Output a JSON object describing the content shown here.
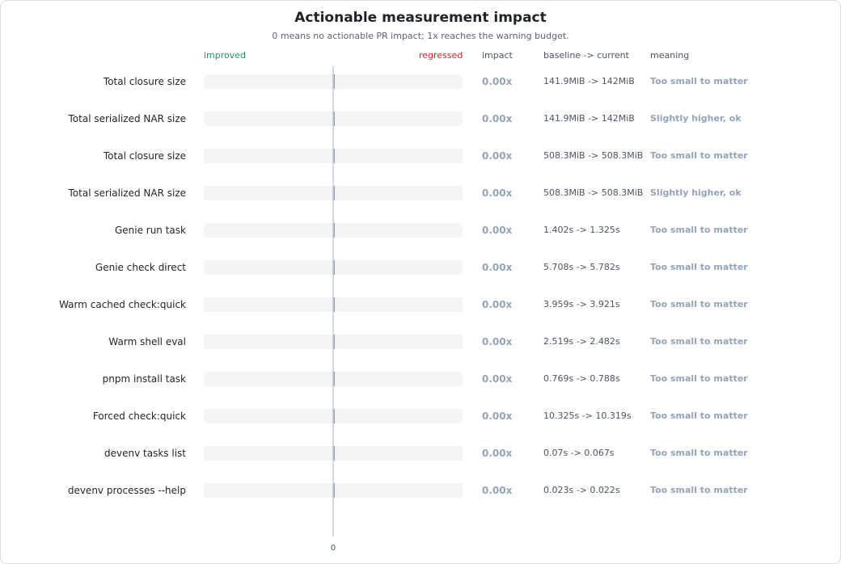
{
  "chart_data": {
    "type": "bar",
    "title": "Actionable measurement impact",
    "subtitle": "0 means no actionable PR impact; 1x reaches the warning budget.",
    "columns": {
      "improved": "improved",
      "regressed": "regressed",
      "impact": "impact",
      "baseline": "baseline -> current",
      "meaning": "meaning"
    },
    "x_tick": "0",
    "xlim": [
      -1,
      1
    ],
    "grid": false,
    "rows": [
      {
        "label": "Total closure size",
        "value": 0.0,
        "impact": "0.00x",
        "baseline": "141.9MiB -> 142MiB",
        "meaning": "Too small to matter"
      },
      {
        "label": "Total serialized NAR size",
        "value": 0.0,
        "impact": "0.00x",
        "baseline": "141.9MiB -> 142MiB",
        "meaning": "Slightly higher, ok"
      },
      {
        "label": "Total closure size",
        "value": 0.0,
        "impact": "0.00x",
        "baseline": "508.3MiB -> 508.3MiB",
        "meaning": "Too small to matter"
      },
      {
        "label": "Total serialized NAR size",
        "value": 0.0,
        "impact": "0.00x",
        "baseline": "508.3MiB -> 508.3MiB",
        "meaning": "Slightly higher, ok"
      },
      {
        "label": "Genie run task",
        "value": 0.0,
        "impact": "0.00x",
        "baseline": "1.402s -> 1.325s",
        "meaning": "Too small to matter"
      },
      {
        "label": "Genie check direct",
        "value": 0.0,
        "impact": "0.00x",
        "baseline": "5.708s -> 5.782s",
        "meaning": "Too small to matter"
      },
      {
        "label": "Warm cached check:quick",
        "value": 0.0,
        "impact": "0.00x",
        "baseline": "3.959s -> 3.921s",
        "meaning": "Too small to matter"
      },
      {
        "label": "Warm shell eval",
        "value": 0.0,
        "impact": "0.00x",
        "baseline": "2.519s -> 2.482s",
        "meaning": "Too small to matter"
      },
      {
        "label": "pnpm install task",
        "value": 0.0,
        "impact": "0.00x",
        "baseline": "0.769s -> 0.788s",
        "meaning": "Too small to matter"
      },
      {
        "label": "Forced check:quick",
        "value": 0.0,
        "impact": "0.00x",
        "baseline": "10.325s -> 10.319s",
        "meaning": "Too small to matter"
      },
      {
        "label": "devenv tasks list",
        "value": 0.0,
        "impact": "0.00x",
        "baseline": "0.07s -> 0.067s",
        "meaning": "Too small to matter"
      },
      {
        "label": "devenv processes --help",
        "value": 0.0,
        "impact": "0.00x",
        "baseline": "0.023s -> 0.022s",
        "meaning": "Too small to matter"
      }
    ],
    "colors": {
      "improved": "#1a9b5b",
      "regressed": "#dc2626",
      "neutral": "#94a3b8",
      "track": "#f3f4f6",
      "axis": "#c5ccd6"
    }
  }
}
